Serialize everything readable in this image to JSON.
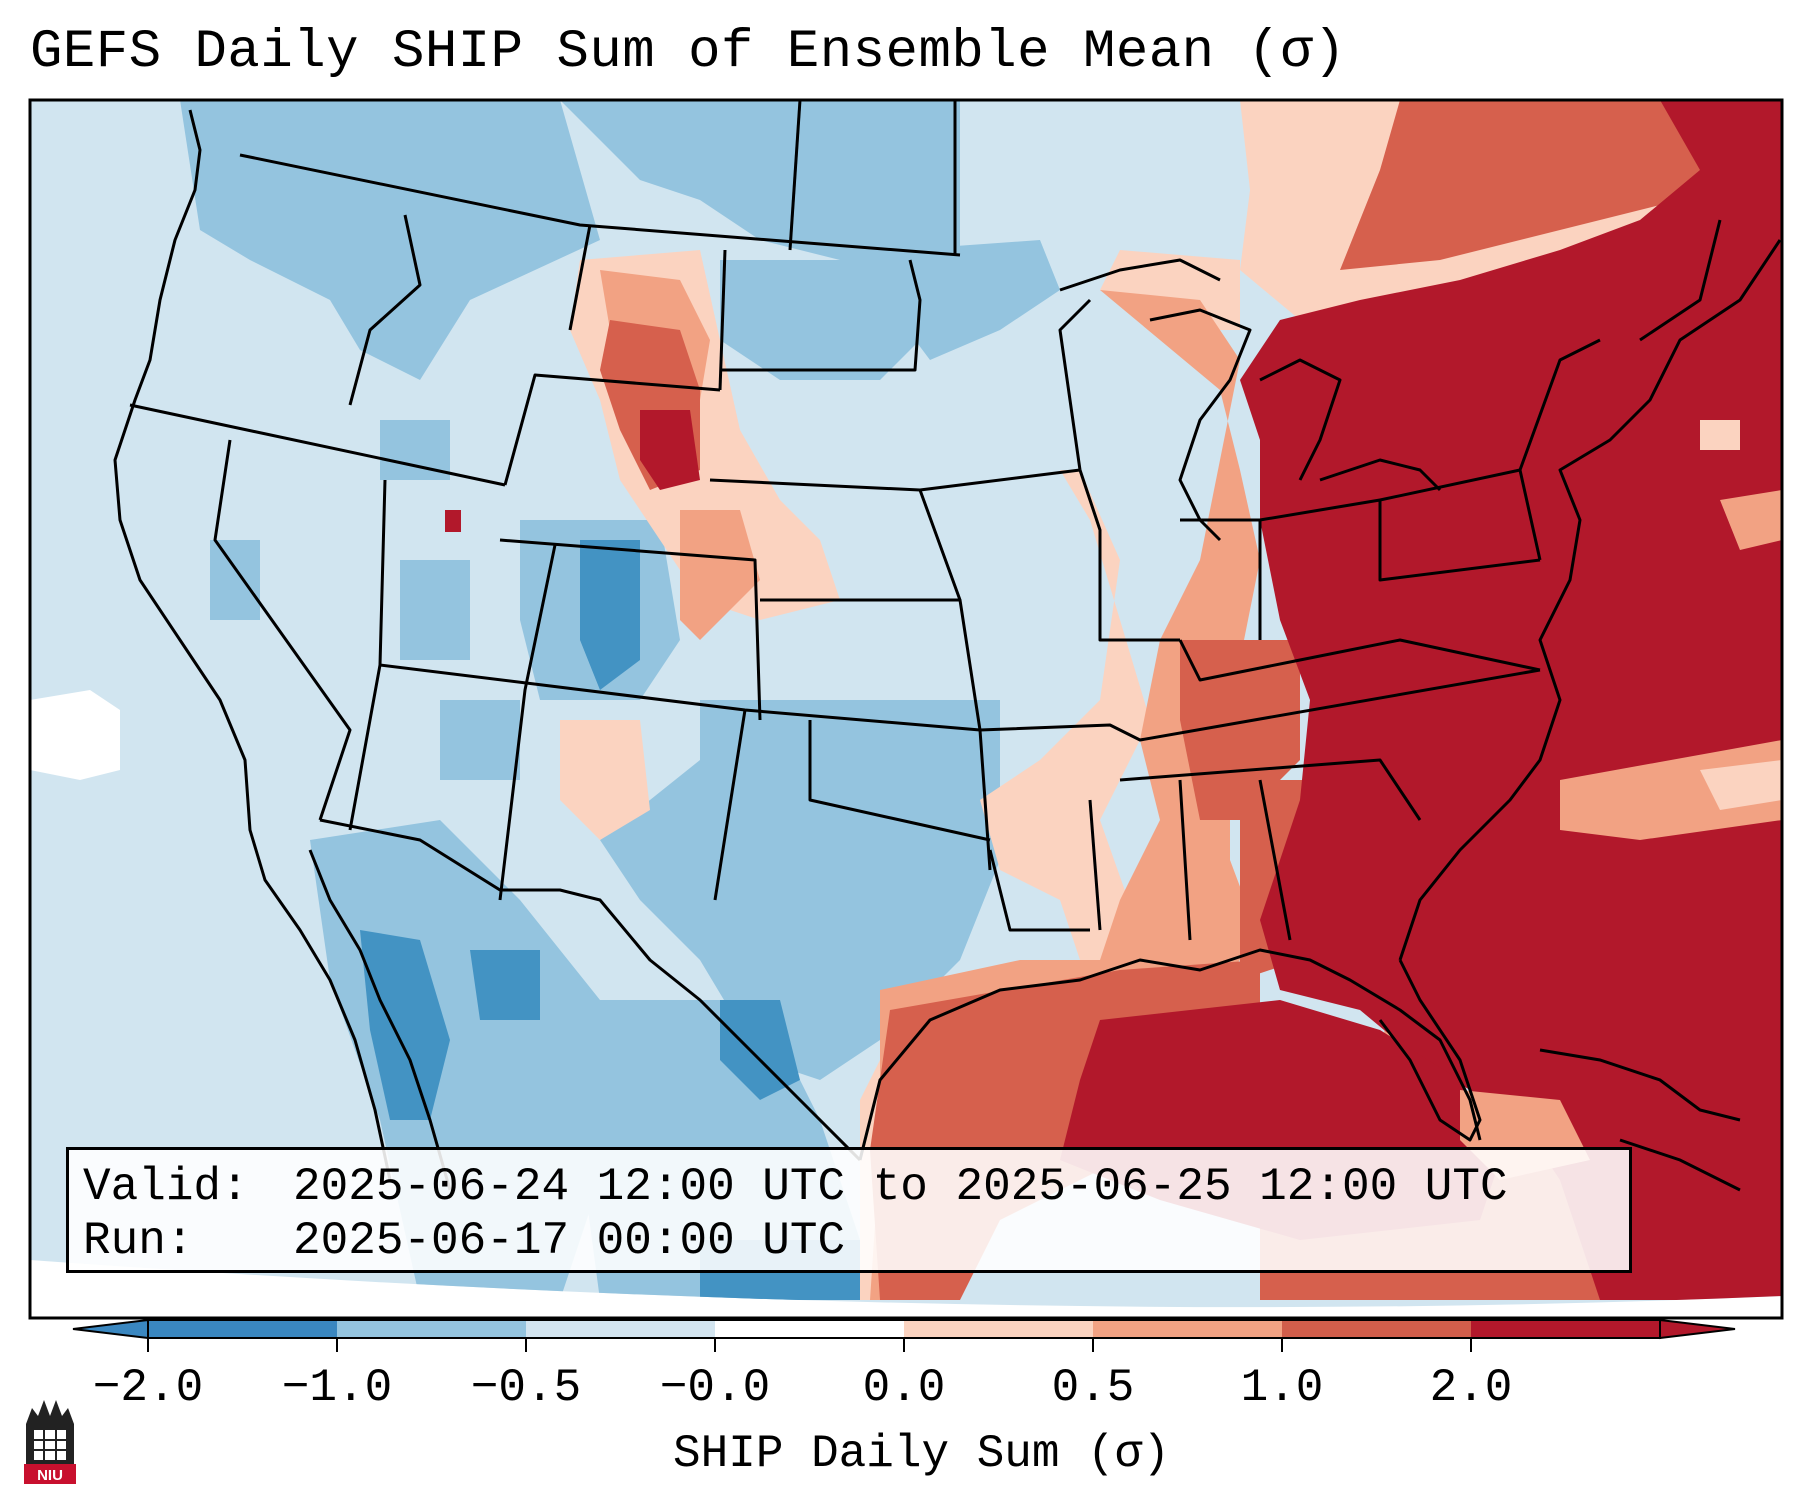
{
  "title": "GEFS Daily SHIP Sum of Ensemble Mean (σ)",
  "info": {
    "valid_key": "Valid:",
    "valid_value": "2025-06-24 12:00 UTC to 2025-06-25 12:00 UTC",
    "run_key": "Run:",
    "run_value": "2025-06-17 00:00 UTC"
  },
  "colorbar": {
    "label": "SHIP Daily Sum (σ)",
    "ticks": [
      "−2.0",
      "−1.0",
      "−0.5",
      "−0.0",
      "0.0",
      "0.5",
      "1.0",
      "2.0"
    ],
    "colors": [
      "#3a87c0",
      "#94c4df",
      "#d3e5f0",
      "#ffffff",
      "#fbd3c0",
      "#f2a283",
      "#d15e4b",
      "#b2182b"
    ],
    "under_color": "#3a87c0",
    "over_color": "#b2182b"
  },
  "map": {
    "background_color": "#d1e5f0",
    "ocean_east_color": "#b2182b"
  },
  "logo": {
    "text": "NIU",
    "color": "#c8102e"
  }
}
